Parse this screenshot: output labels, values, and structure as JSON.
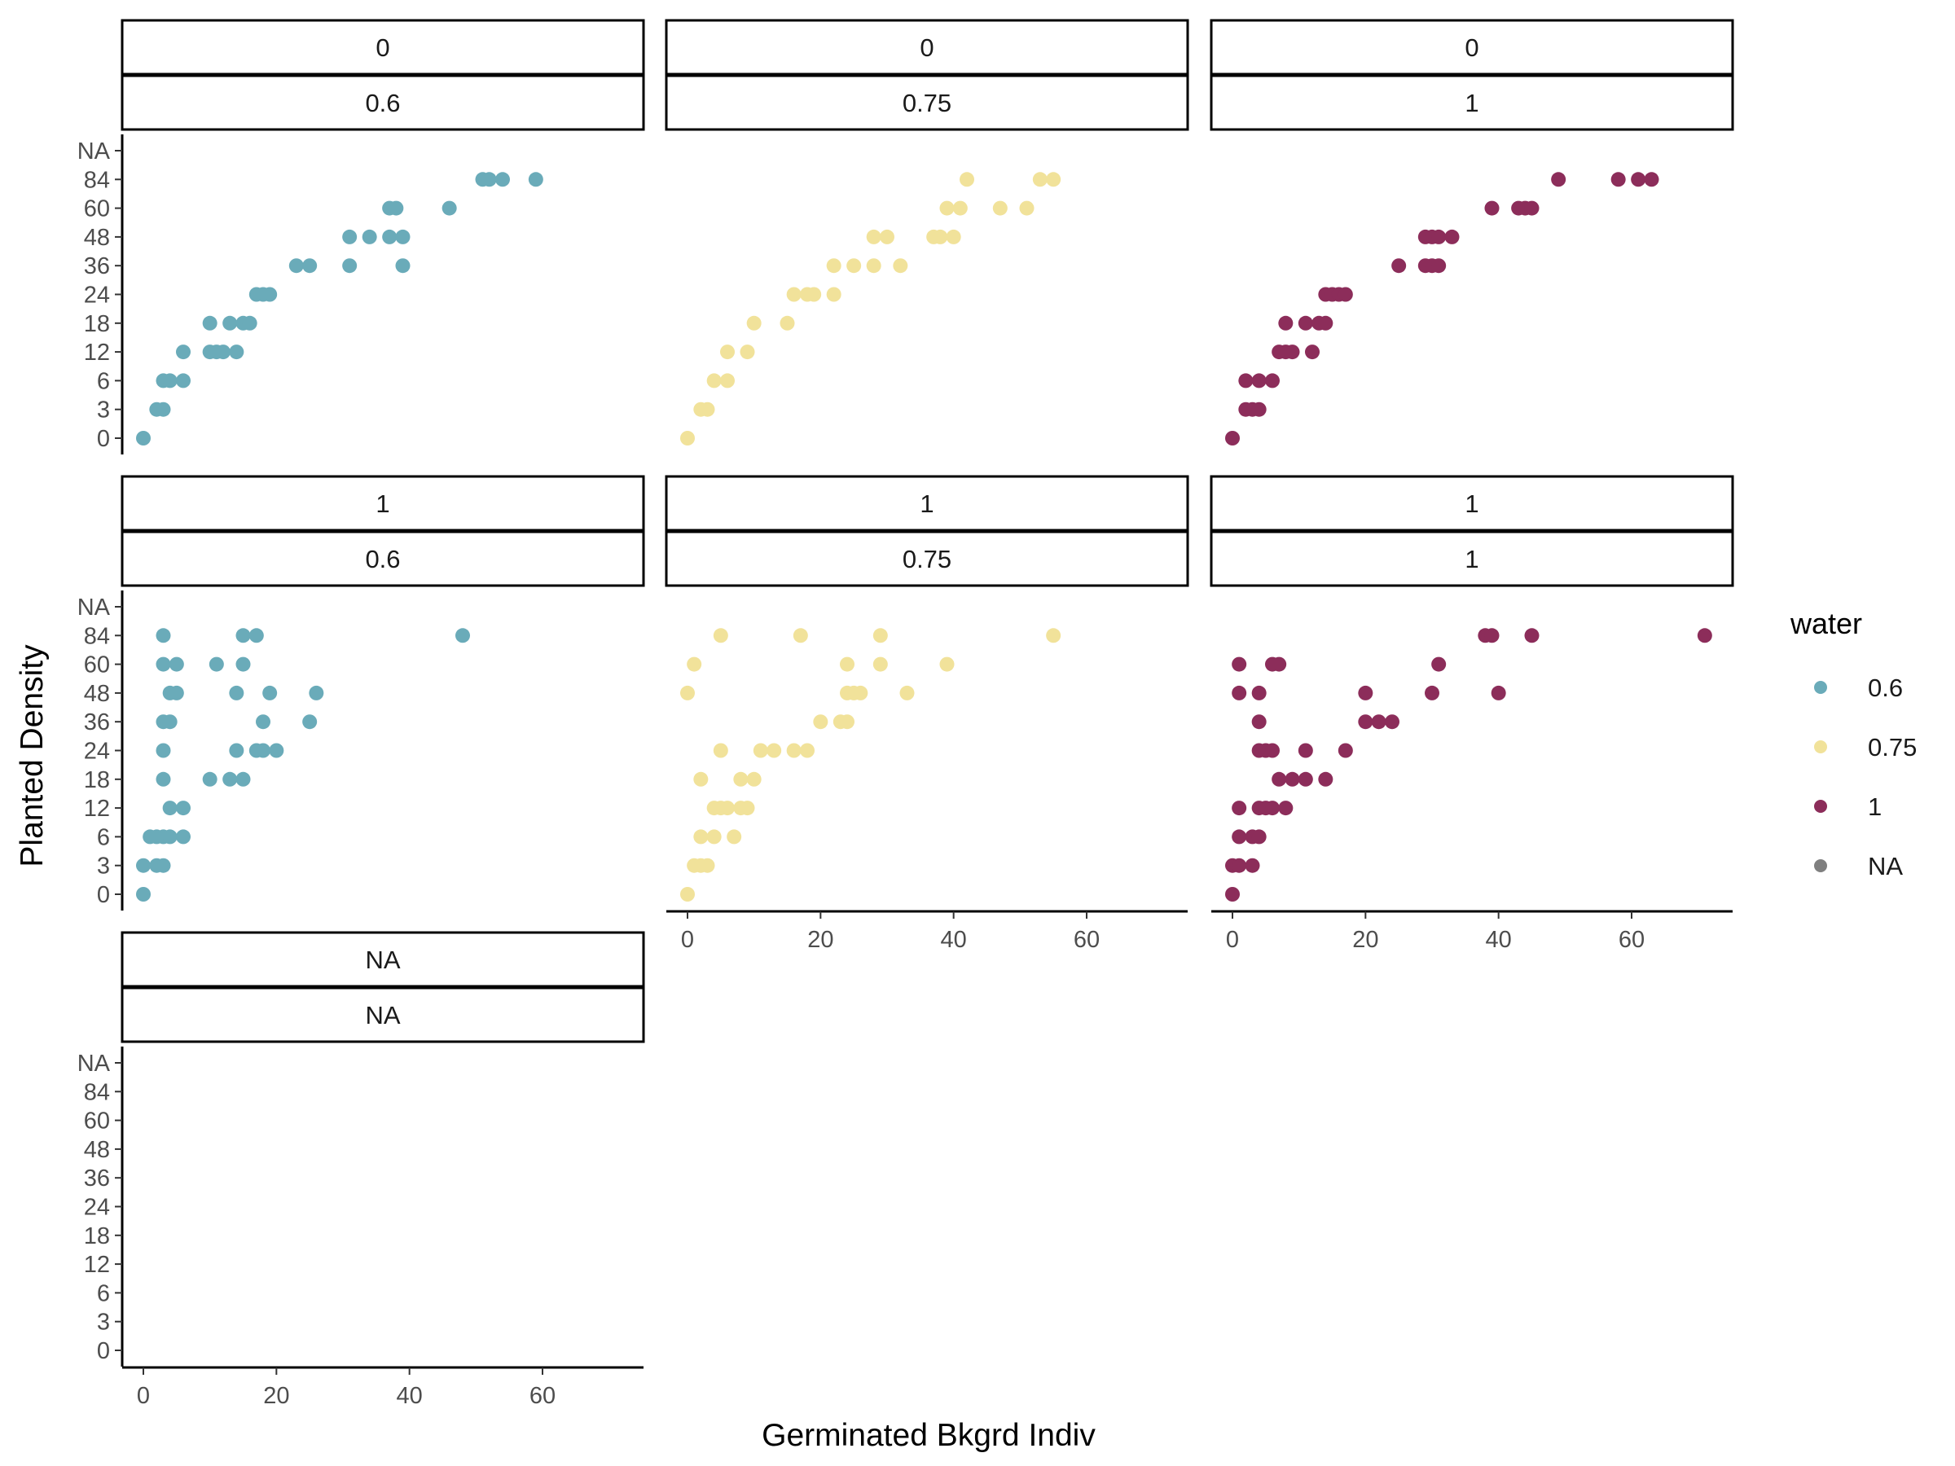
{
  "chart_data": {
    "type": "scatter",
    "xlabel": "Germinated Bkgrd Indiv",
    "ylabel": "Planted Density",
    "x_ticks": [
      0,
      20,
      40,
      60
    ],
    "xlim": [
      -3,
      74
    ],
    "y_categories": [
      "0",
      "3",
      "6",
      "12",
      "18",
      "24",
      "36",
      "48",
      "60",
      "84",
      "NA"
    ],
    "legend": {
      "title": "water",
      "position": "right",
      "entries": [
        {
          "label": "0.6",
          "color": "#6aabb9"
        },
        {
          "label": "0.75",
          "color": "#f1e29a"
        },
        {
          "label": "1",
          "color": "#8c2d5a"
        },
        {
          "label": "NA",
          "color": "#7f7f7f"
        }
      ]
    },
    "facets": [
      {
        "strip_top": "0",
        "strip_bottom": "0.6",
        "color": "#6aabb9",
        "points": [
          [
            0,
            "0"
          ],
          [
            2,
            "3"
          ],
          [
            3,
            "3"
          ],
          [
            3,
            "6"
          ],
          [
            4,
            "6"
          ],
          [
            6,
            "6"
          ],
          [
            6,
            "12"
          ],
          [
            10,
            "12"
          ],
          [
            11,
            "12"
          ],
          [
            12,
            "12"
          ],
          [
            14,
            "12"
          ],
          [
            10,
            "18"
          ],
          [
            13,
            "18"
          ],
          [
            15,
            "18"
          ],
          [
            16,
            "18"
          ],
          [
            17,
            "24"
          ],
          [
            18,
            "24"
          ],
          [
            19,
            "24"
          ],
          [
            23,
            "36"
          ],
          [
            25,
            "36"
          ],
          [
            31,
            "36"
          ],
          [
            39,
            "36"
          ],
          [
            31,
            "48"
          ],
          [
            34,
            "48"
          ],
          [
            37,
            "48"
          ],
          [
            39,
            "48"
          ],
          [
            37,
            "60"
          ],
          [
            38,
            "60"
          ],
          [
            46,
            "60"
          ],
          [
            51,
            "84"
          ],
          [
            52,
            "84"
          ],
          [
            54,
            "84"
          ],
          [
            59,
            "84"
          ]
        ]
      },
      {
        "strip_top": "0",
        "strip_bottom": "0.75",
        "color": "#f1e29a",
        "points": [
          [
            0,
            "0"
          ],
          [
            2,
            "3"
          ],
          [
            3,
            "3"
          ],
          [
            4,
            "6"
          ],
          [
            6,
            "6"
          ],
          [
            6,
            "12"
          ],
          [
            9,
            "12"
          ],
          [
            10,
            "18"
          ],
          [
            15,
            "18"
          ],
          [
            16,
            "24"
          ],
          [
            18,
            "24"
          ],
          [
            19,
            "24"
          ],
          [
            22,
            "24"
          ],
          [
            22,
            "36"
          ],
          [
            25,
            "36"
          ],
          [
            28,
            "36"
          ],
          [
            32,
            "36"
          ],
          [
            28,
            "48"
          ],
          [
            30,
            "48"
          ],
          [
            37,
            "48"
          ],
          [
            38,
            "48"
          ],
          [
            40,
            "48"
          ],
          [
            39,
            "60"
          ],
          [
            41,
            "60"
          ],
          [
            47,
            "60"
          ],
          [
            51,
            "60"
          ],
          [
            42,
            "84"
          ],
          [
            53,
            "84"
          ],
          [
            55,
            "84"
          ]
        ]
      },
      {
        "strip_top": "0",
        "strip_bottom": "1",
        "color": "#8c2d5a",
        "points": [
          [
            0,
            "0"
          ],
          [
            2,
            "3"
          ],
          [
            3,
            "3"
          ],
          [
            4,
            "3"
          ],
          [
            2,
            "6"
          ],
          [
            4,
            "6"
          ],
          [
            6,
            "6"
          ],
          [
            7,
            "12"
          ],
          [
            8,
            "12"
          ],
          [
            9,
            "12"
          ],
          [
            12,
            "12"
          ],
          [
            8,
            "18"
          ],
          [
            11,
            "18"
          ],
          [
            13,
            "18"
          ],
          [
            14,
            "18"
          ],
          [
            14,
            "24"
          ],
          [
            15,
            "24"
          ],
          [
            16,
            "24"
          ],
          [
            17,
            "24"
          ],
          [
            25,
            "36"
          ],
          [
            29,
            "36"
          ],
          [
            30,
            "36"
          ],
          [
            31,
            "36"
          ],
          [
            29,
            "48"
          ],
          [
            30,
            "48"
          ],
          [
            31,
            "48"
          ],
          [
            33,
            "48"
          ],
          [
            39,
            "60"
          ],
          [
            43,
            "60"
          ],
          [
            44,
            "60"
          ],
          [
            45,
            "60"
          ],
          [
            49,
            "84"
          ],
          [
            58,
            "84"
          ],
          [
            61,
            "84"
          ],
          [
            63,
            "84"
          ]
        ]
      },
      {
        "strip_top": "1",
        "strip_bottom": "0.6",
        "color": "#6aabb9",
        "points": [
          [
            0,
            "0"
          ],
          [
            0,
            "3"
          ],
          [
            2,
            "3"
          ],
          [
            3,
            "3"
          ],
          [
            1,
            "6"
          ],
          [
            2,
            "6"
          ],
          [
            3,
            "6"
          ],
          [
            4,
            "6"
          ],
          [
            6,
            "6"
          ],
          [
            4,
            "12"
          ],
          [
            6,
            "12"
          ],
          [
            3,
            "18"
          ],
          [
            10,
            "18"
          ],
          [
            13,
            "18"
          ],
          [
            15,
            "18"
          ],
          [
            3,
            "24"
          ],
          [
            14,
            "24"
          ],
          [
            17,
            "24"
          ],
          [
            18,
            "24"
          ],
          [
            20,
            "24"
          ],
          [
            3,
            "36"
          ],
          [
            4,
            "36"
          ],
          [
            18,
            "36"
          ],
          [
            25,
            "36"
          ],
          [
            4,
            "48"
          ],
          [
            5,
            "48"
          ],
          [
            14,
            "48"
          ],
          [
            19,
            "48"
          ],
          [
            26,
            "48"
          ],
          [
            3,
            "60"
          ],
          [
            5,
            "60"
          ],
          [
            11,
            "60"
          ],
          [
            15,
            "60"
          ],
          [
            3,
            "84"
          ],
          [
            15,
            "84"
          ],
          [
            17,
            "84"
          ],
          [
            48,
            "84"
          ]
        ]
      },
      {
        "strip_top": "1",
        "strip_bottom": "0.75",
        "color": "#f1e29a",
        "points": [
          [
            0,
            "0"
          ],
          [
            1,
            "3"
          ],
          [
            2,
            "3"
          ],
          [
            3,
            "3"
          ],
          [
            2,
            "6"
          ],
          [
            4,
            "6"
          ],
          [
            7,
            "6"
          ],
          [
            4,
            "12"
          ],
          [
            5,
            "12"
          ],
          [
            6,
            "12"
          ],
          [
            8,
            "12"
          ],
          [
            9,
            "12"
          ],
          [
            2,
            "18"
          ],
          [
            8,
            "18"
          ],
          [
            10,
            "18"
          ],
          [
            5,
            "24"
          ],
          [
            11,
            "24"
          ],
          [
            13,
            "24"
          ],
          [
            16,
            "24"
          ],
          [
            18,
            "24"
          ],
          [
            20,
            "36"
          ],
          [
            23,
            "36"
          ],
          [
            24,
            "36"
          ],
          [
            24,
            "48"
          ],
          [
            25,
            "48"
          ],
          [
            26,
            "48"
          ],
          [
            33,
            "48"
          ],
          [
            0,
            "48"
          ],
          [
            1,
            "60"
          ],
          [
            24,
            "60"
          ],
          [
            29,
            "60"
          ],
          [
            39,
            "60"
          ],
          [
            5,
            "84"
          ],
          [
            17,
            "84"
          ],
          [
            29,
            "84"
          ],
          [
            55,
            "84"
          ]
        ]
      },
      {
        "strip_top": "1",
        "strip_bottom": "1",
        "color": "#8c2d5a",
        "points": [
          [
            0,
            "0"
          ],
          [
            0,
            "3"
          ],
          [
            1,
            "3"
          ],
          [
            3,
            "3"
          ],
          [
            1,
            "6"
          ],
          [
            3,
            "6"
          ],
          [
            4,
            "6"
          ],
          [
            1,
            "12"
          ],
          [
            4,
            "12"
          ],
          [
            5,
            "12"
          ],
          [
            6,
            "12"
          ],
          [
            8,
            "12"
          ],
          [
            7,
            "18"
          ],
          [
            9,
            "18"
          ],
          [
            11,
            "18"
          ],
          [
            14,
            "18"
          ],
          [
            4,
            "24"
          ],
          [
            5,
            "24"
          ],
          [
            6,
            "24"
          ],
          [
            11,
            "24"
          ],
          [
            17,
            "24"
          ],
          [
            4,
            "36"
          ],
          [
            20,
            "36"
          ],
          [
            22,
            "36"
          ],
          [
            24,
            "36"
          ],
          [
            1,
            "48"
          ],
          [
            4,
            "48"
          ],
          [
            20,
            "48"
          ],
          [
            30,
            "48"
          ],
          [
            40,
            "48"
          ],
          [
            1,
            "60"
          ],
          [
            6,
            "60"
          ],
          [
            7,
            "60"
          ],
          [
            31,
            "60"
          ],
          [
            38,
            "84"
          ],
          [
            39,
            "84"
          ],
          [
            45,
            "84"
          ],
          [
            71,
            "84"
          ]
        ]
      },
      {
        "strip_top": "NA",
        "strip_bottom": "NA",
        "color": "#7f7f7f",
        "points": []
      }
    ]
  }
}
